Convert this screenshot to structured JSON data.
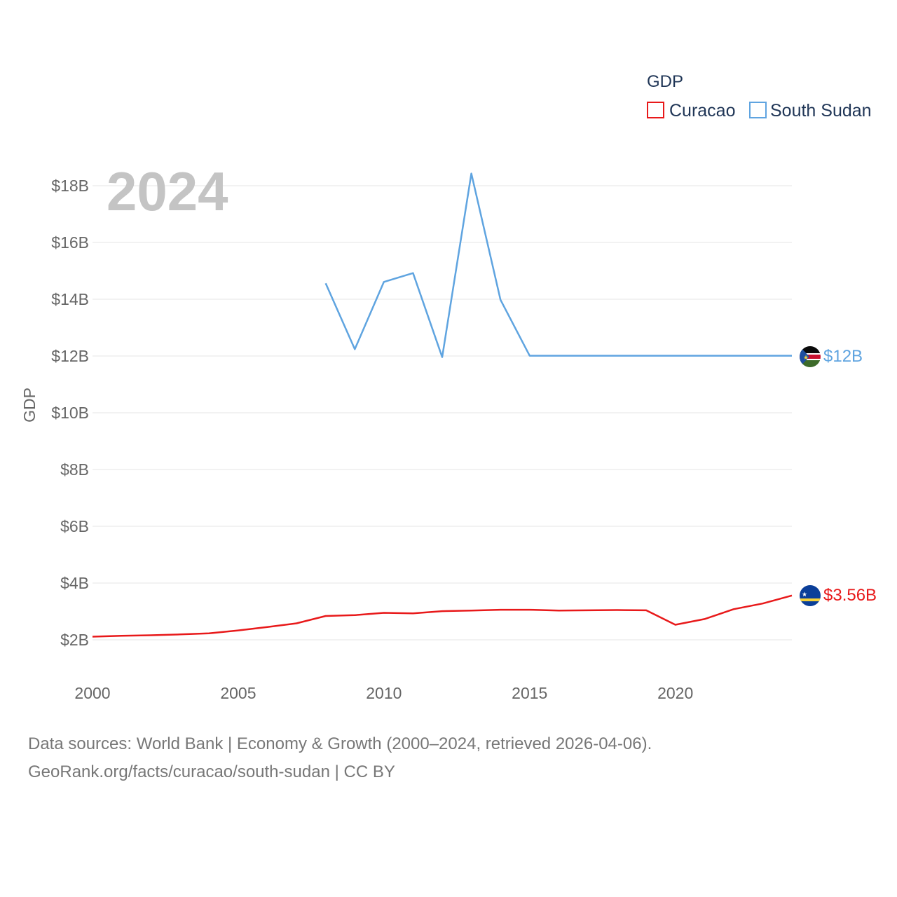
{
  "chart_data": {
    "type": "line",
    "title": "",
    "year_label": "2024",
    "legend_title": "GDP",
    "ylabel": "GDP",
    "xlabel": "",
    "xlim": [
      2000,
      2024
    ],
    "ylim": [
      1000000000,
      19000000000
    ],
    "x_ticks": [
      2000,
      2005,
      2010,
      2015,
      2020
    ],
    "x_tick_labels": [
      "2000",
      "2005",
      "2010",
      "2015",
      "2020"
    ],
    "y_ticks": [
      2000000000,
      4000000000,
      6000000000,
      8000000000,
      10000000000,
      12000000000,
      14000000000,
      16000000000,
      18000000000
    ],
    "y_tick_labels": [
      "$2B",
      "$4B",
      "$6B",
      "$8B",
      "$10B",
      "$12B",
      "$14B",
      "$16B",
      "$18B"
    ],
    "grid": true,
    "legend_position": "top-right",
    "series": [
      {
        "name": "Curacao",
        "color": "#e8191a",
        "flag_icon": "curacao-flag-icon",
        "end_label": "$3.56B",
        "x": [
          2000,
          2001,
          2002,
          2003,
          2004,
          2005,
          2006,
          2007,
          2008,
          2009,
          2010,
          2011,
          2012,
          2013,
          2014,
          2015,
          2016,
          2017,
          2018,
          2019,
          2020,
          2021,
          2022,
          2023,
          2024
        ],
        "values": [
          2110000000,
          2140000000,
          2160000000,
          2190000000,
          2230000000,
          2330000000,
          2450000000,
          2580000000,
          2840000000,
          2870000000,
          2950000000,
          2930000000,
          3010000000,
          3030000000,
          3060000000,
          3060000000,
          3030000000,
          3040000000,
          3050000000,
          3040000000,
          2530000000,
          2730000000,
          3080000000,
          3280000000,
          3560000000
        ]
      },
      {
        "name": "South Sudan",
        "color": "#5fa4e0",
        "flag_icon": "south-sudan-flag-icon",
        "end_label": "$12B",
        "x": [
          2008,
          2009,
          2010,
          2011,
          2012,
          2013,
          2014,
          2015,
          2016,
          2017,
          2018,
          2019,
          2020,
          2021,
          2022,
          2023,
          2024
        ],
        "values": [
          14560000000,
          12240000000,
          14610000000,
          14920000000,
          11960000000,
          18430000000,
          13980000000,
          12010000000,
          12010000000,
          12010000000,
          12010000000,
          12010000000,
          12010000000,
          12010000000,
          12010000000,
          12010000000,
          12010000000
        ]
      }
    ]
  },
  "source": {
    "line1": "Data sources: World Bank | Economy & Growth (2000–2024, retrieved 2026-04-06).",
    "line2": "GeoRank.org/facts/curacao/south-sudan | CC BY"
  }
}
